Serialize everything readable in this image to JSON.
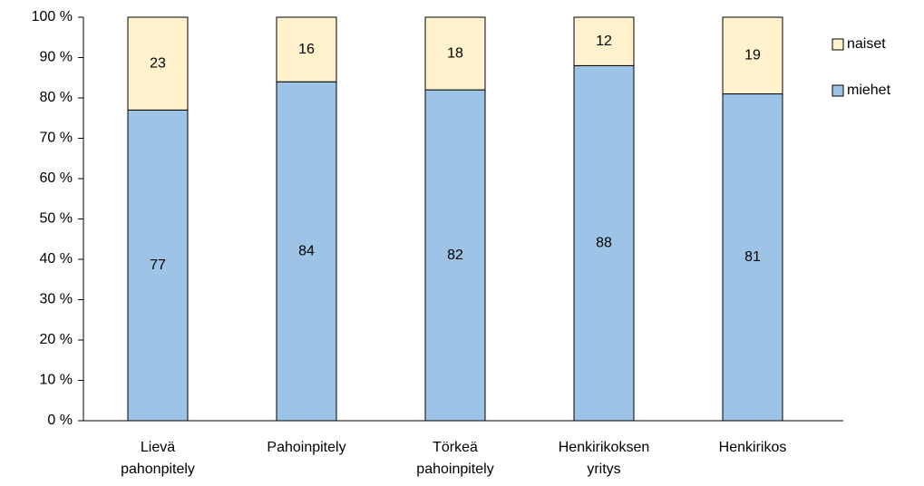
{
  "chart_data": {
    "type": "stacked_bar",
    "categories": [
      "Lievä pahonpitely",
      "Pahoinpitely",
      "Törkeä pahoinpitely",
      "Henkirikoksen yritys",
      "Henkirikos"
    ],
    "series": [
      {
        "name": "miehet",
        "color": "#9dc3e6",
        "values": [
          77,
          84,
          82,
          88,
          81
        ]
      },
      {
        "name": "naiset",
        "color": "#fff2cc",
        "values": [
          23,
          16,
          18,
          12,
          19
        ]
      }
    ],
    "ylim": [
      0,
      100
    ],
    "yticks": [
      {
        "value": 0,
        "label": "0 %"
      },
      {
        "value": 10,
        "label": "10 %"
      },
      {
        "value": 20,
        "label": "20 %"
      },
      {
        "value": 30,
        "label": "30 %"
      },
      {
        "value": 40,
        "label": "40 %"
      },
      {
        "value": 50,
        "label": "50 %"
      },
      {
        "value": 60,
        "label": "60 %"
      },
      {
        "value": 70,
        "label": "70 %"
      },
      {
        "value": 80,
        "label": "80 %"
      },
      {
        "value": 90,
        "label": "90 %"
      },
      {
        "value": 100,
        "label": "100 %"
      }
    ],
    "legend": "right"
  }
}
